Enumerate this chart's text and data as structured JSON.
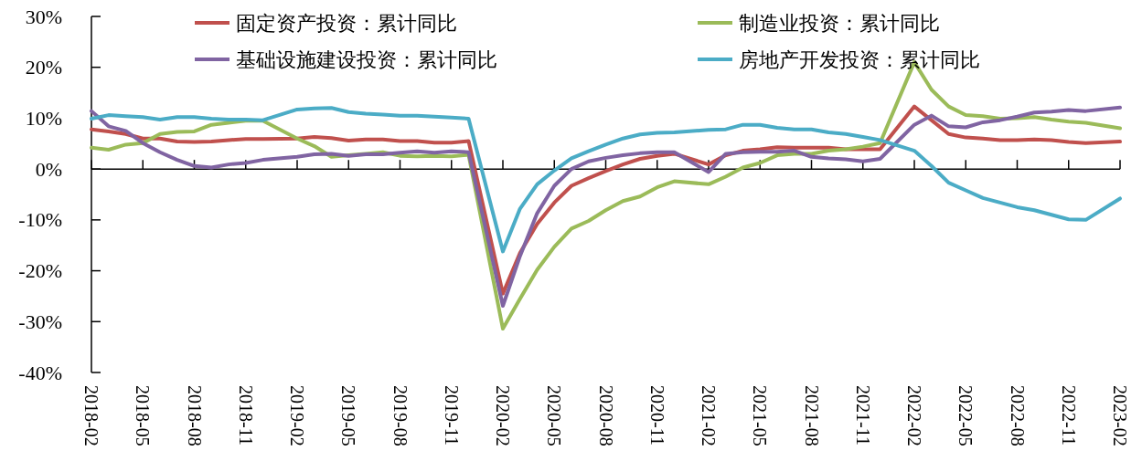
{
  "chart_data": {
    "type": "line",
    "categories": [
      "2018-02",
      null,
      null,
      "2018-05",
      null,
      null,
      "2018-08",
      null,
      null,
      "2018-11",
      null,
      null,
      "2019-02",
      null,
      null,
      "2019-05",
      null,
      null,
      "2019-08",
      null,
      null,
      "2019-11",
      null,
      null,
      "2020-02",
      null,
      null,
      "2020-05",
      null,
      null,
      "2020-08",
      null,
      null,
      "2020-11",
      null,
      null,
      "2021-02",
      null,
      null,
      "2021-05",
      null,
      null,
      "2021-08",
      null,
      null,
      "2021-11",
      null,
      null,
      "2022-02",
      null,
      null,
      "2022-05",
      null,
      null,
      "2022-08",
      null,
      null,
      "2022-11",
      null,
      null,
      "2023-02"
    ],
    "series": [
      {
        "name": "固定资产投资：累计同比",
        "color": "#c0504d",
        "values": [
          7.8,
          7.4,
          6.9,
          6.0,
          6.0,
          5.4,
          5.3,
          5.4,
          5.7,
          5.9,
          5.9,
          null,
          6.0,
          6.3,
          6.1,
          5.6,
          5.8,
          5.8,
          5.5,
          5.5,
          5.2,
          5.2,
          5.5,
          null,
          -24.5,
          -16.5,
          -10.8,
          -6.6,
          -3.3,
          -1.8,
          -0.4,
          0.9,
          2.0,
          2.6,
          3.0,
          null,
          0.9,
          2.7,
          3.6,
          3.9,
          4.3,
          4.2,
          4.2,
          4.2,
          3.9,
          3.9,
          3.9,
          null,
          12.3,
          9.6,
          6.9,
          6.2,
          6.0,
          5.7,
          5.7,
          5.8,
          5.7,
          5.3,
          5.1,
          null,
          5.4
        ]
      },
      {
        "name": "制造业投资：累计同比",
        "color": "#9bbb59",
        "values": [
          4.2,
          3.8,
          4.8,
          5.1,
          6.9,
          7.3,
          7.4,
          8.7,
          9.1,
          9.5,
          9.5,
          null,
          6.0,
          4.5,
          2.4,
          2.7,
          3.0,
          3.3,
          2.6,
          2.5,
          2.6,
          2.5,
          2.8,
          null,
          -31.4,
          -25.5,
          -19.8,
          -15.3,
          -11.7,
          -10.2,
          -8.1,
          -6.3,
          -5.4,
          -3.6,
          -2.4,
          null,
          -3.0,
          -1.5,
          0.3,
          1.2,
          2.7,
          3.0,
          3.0,
          3.6,
          3.9,
          4.4,
          5.1,
          null,
          21.0,
          15.6,
          12.3,
          10.6,
          10.4,
          9.9,
          10.0,
          10.2,
          9.7,
          9.3,
          9.1,
          null,
          8.0
        ]
      },
      {
        "name": "基础设施建设投资：累计同比",
        "color": "#8064a2",
        "values": [
          11.4,
          8.4,
          7.5,
          5.1,
          3.3,
          1.8,
          0.6,
          0.3,
          0.9,
          1.2,
          1.8,
          null,
          2.4,
          2.9,
          3.0,
          2.6,
          2.9,
          2.9,
          3.2,
          3.5,
          3.2,
          3.5,
          3.3,
          null,
          -26.9,
          -17.1,
          -8.7,
          -3.3,
          0.0,
          1.5,
          2.2,
          2.7,
          3.1,
          3.3,
          3.3,
          null,
          -0.6,
          3.0,
          3.3,
          3.4,
          3.4,
          3.6,
          2.4,
          2.1,
          1.9,
          1.5,
          2.0,
          null,
          8.7,
          10.5,
          8.4,
          8.2,
          9.2,
          9.6,
          10.3,
          11.1,
          11.3,
          11.6,
          11.4,
          null,
          12.1
        ]
      },
      {
        "name": "房地产开发投资：累计同比",
        "color": "#4bacc6",
        "values": [
          9.9,
          10.6,
          10.4,
          10.2,
          9.7,
          10.2,
          10.2,
          9.9,
          9.7,
          9.7,
          9.6,
          null,
          11.7,
          11.9,
          12.0,
          11.2,
          10.9,
          10.7,
          10.5,
          10.5,
          10.3,
          10.1,
          9.9,
          null,
          -16.2,
          -7.8,
          -3.0,
          -0.3,
          2.1,
          3.5,
          4.8,
          6.0,
          6.8,
          7.1,
          7.2,
          null,
          7.7,
          7.8,
          8.7,
          8.7,
          8.1,
          7.8,
          7.8,
          7.2,
          6.9,
          6.3,
          5.7,
          null,
          3.6,
          0.6,
          -2.7,
          -4.2,
          -5.7,
          -6.6,
          -7.5,
          -8.1,
          -9.0,
          -9.9,
          -10.0,
          null,
          -5.8
        ]
      }
    ],
    "ylim": [
      -40,
      30
    ],
    "yticks": [
      {
        "value": -40,
        "label": "-40%"
      },
      {
        "value": -30,
        "label": "-30%"
      },
      {
        "value": -20,
        "label": "-20%"
      },
      {
        "value": -10,
        "label": "-10%"
      },
      {
        "value": 0,
        "label": "0%"
      },
      {
        "value": 10,
        "label": "10%"
      },
      {
        "value": 20,
        "label": "20%"
      },
      {
        "value": 30,
        "label": "30%"
      }
    ],
    "legend": "top",
    "marker": "none",
    "line_style": "solid"
  }
}
